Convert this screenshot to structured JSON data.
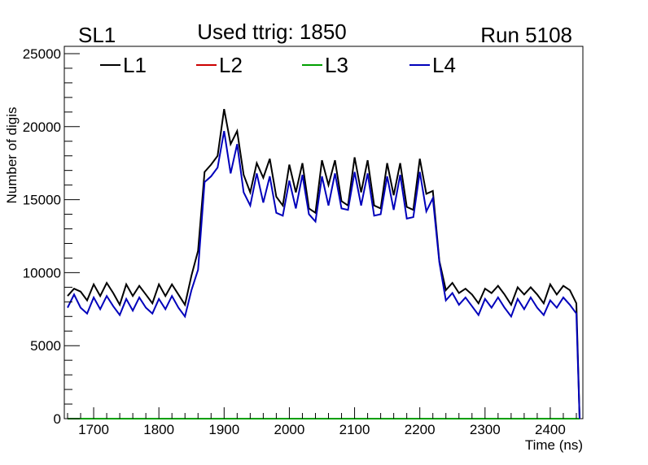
{
  "header": {
    "left": "SL1",
    "center": "Used ttrig: 1850",
    "right": "Run 5108"
  },
  "chart_data": {
    "type": "line",
    "xlabel": "Time (ns)",
    "ylabel": "Number of digis",
    "xlim": [
      1655,
      2450
    ],
    "ylim": [
      0,
      25500
    ],
    "x_ticks": [
      1700,
      1800,
      1900,
      2000,
      2100,
      2200,
      2300,
      2400
    ],
    "y_ticks": [
      0,
      5000,
      10000,
      15000,
      20000,
      25000
    ],
    "x_tick_labels": [
      "1700",
      "1800",
      "1900",
      "2000",
      "2100",
      "2200",
      "2300",
      "2400"
    ],
    "y_tick_labels": [
      "0",
      "5000",
      "10000",
      "15000",
      "20000",
      "25000"
    ],
    "grid": false,
    "legend_position": "top",
    "x": [
      1660,
      1670,
      1680,
      1690,
      1700,
      1710,
      1720,
      1730,
      1740,
      1750,
      1760,
      1770,
      1780,
      1790,
      1800,
      1810,
      1820,
      1830,
      1840,
      1850,
      1860,
      1870,
      1880,
      1890,
      1900,
      1910,
      1920,
      1930,
      1940,
      1950,
      1960,
      1970,
      1980,
      1990,
      2000,
      2010,
      2020,
      2030,
      2040,
      2050,
      2060,
      2070,
      2080,
      2090,
      2100,
      2110,
      2120,
      2130,
      2140,
      2150,
      2160,
      2170,
      2180,
      2190,
      2200,
      2210,
      2220,
      2230,
      2240,
      2250,
      2260,
      2270,
      2280,
      2290,
      2300,
      2310,
      2320,
      2330,
      2340,
      2350,
      2360,
      2370,
      2380,
      2390,
      2400,
      2410,
      2420,
      2430,
      2440,
      2445
    ],
    "series": [
      {
        "name": "L1",
        "color": "#000000",
        "values": [
          8400,
          8900,
          8700,
          8100,
          9200,
          8400,
          9300,
          8600,
          7800,
          9200,
          8400,
          9100,
          8500,
          7900,
          9200,
          8400,
          9200,
          8500,
          7800,
          9800,
          11500,
          16900,
          17400,
          18000,
          21200,
          18800,
          19700,
          16700,
          15500,
          17500,
          16500,
          17800,
          15200,
          14600,
          17400,
          15500,
          17500,
          14400,
          14100,
          17700,
          16000,
          17700,
          14900,
          14600,
          17900,
          15500,
          17700,
          14600,
          14400,
          17500,
          15300,
          17500,
          14500,
          14300,
          17800,
          15400,
          15600,
          10800,
          8800,
          9300,
          8600,
          8900,
          8500,
          7900,
          8900,
          8600,
          9100,
          8500,
          7800,
          9000,
          8500,
          9000,
          8500,
          7900,
          9200,
          8500,
          9100,
          8800,
          7900,
          0
        ]
      },
      {
        "name": "L2",
        "color": "#cc0000",
        "values": [
          0,
          0,
          0,
          0,
          0,
          0,
          0,
          0,
          0,
          0,
          0,
          0,
          0,
          0,
          0,
          0,
          0,
          0,
          0,
          0,
          0,
          0,
          0,
          0,
          0,
          0,
          0,
          0,
          0,
          0,
          0,
          0,
          0,
          0,
          0,
          0,
          0,
          0,
          0,
          0,
          0,
          0,
          0,
          0,
          0,
          0,
          0,
          0,
          0,
          0,
          0,
          0,
          0,
          0,
          0,
          0,
          0,
          0,
          0,
          0,
          0,
          0,
          0,
          0,
          0,
          0,
          0,
          0,
          0,
          0,
          0,
          0,
          0,
          0,
          0,
          0,
          0,
          0,
          0,
          0
        ]
      },
      {
        "name": "L3",
        "color": "#00a000",
        "values": [
          0,
          0,
          0,
          0,
          0,
          0,
          0,
          0,
          0,
          0,
          0,
          0,
          0,
          0,
          0,
          0,
          0,
          0,
          0,
          0,
          0,
          0,
          0,
          0,
          0,
          0,
          0,
          0,
          0,
          0,
          0,
          0,
          0,
          0,
          0,
          0,
          0,
          0,
          0,
          0,
          0,
          0,
          0,
          0,
          0,
          0,
          0,
          0,
          0,
          0,
          0,
          0,
          0,
          0,
          0,
          0,
          0,
          0,
          0,
          0,
          0,
          0,
          0,
          0,
          0,
          0,
          0,
          0,
          0,
          0,
          0,
          0,
          0,
          0,
          0,
          0,
          0,
          0,
          0,
          0
        ]
      },
      {
        "name": "L4",
        "color": "#0000bb",
        "values": [
          7600,
          8500,
          7600,
          7200,
          8300,
          7500,
          8400,
          7700,
          7100,
          8200,
          7400,
          8300,
          7600,
          7200,
          8200,
          7500,
          8400,
          7600,
          7000,
          8800,
          10200,
          16200,
          16600,
          17200,
          19700,
          16800,
          18800,
          15500,
          14600,
          16800,
          14800,
          16600,
          14100,
          13900,
          16300,
          14400,
          16700,
          14000,
          13500,
          16600,
          14600,
          16800,
          14400,
          14300,
          16900,
          14600,
          16800,
          13900,
          14000,
          16600,
          14300,
          16700,
          13700,
          13800,
          16900,
          14200,
          15100,
          10700,
          8100,
          8600,
          7800,
          8300,
          7700,
          7100,
          8200,
          7600,
          8300,
          7600,
          7000,
          8200,
          7500,
          8300,
          7600,
          7100,
          8100,
          7600,
          8300,
          7800,
          7200,
          0
        ]
      }
    ]
  }
}
